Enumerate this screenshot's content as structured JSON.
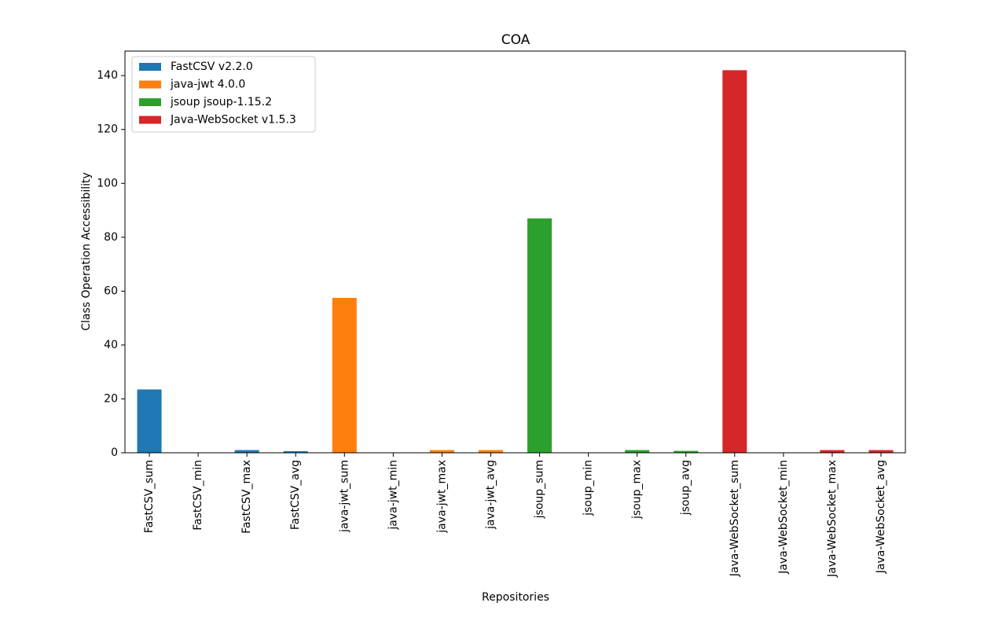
{
  "chart_data": {
    "type": "bar",
    "title": "COA",
    "xlabel": "Repositories",
    "ylabel": "Class Operation Accessibility",
    "categories": [
      "FastCSV_sum",
      "FastCSV_min",
      "FastCSV_max",
      "FastCSV_avg",
      "java-jwt_sum",
      "java-jwt_min",
      "java-jwt_max",
      "java-jwt_avg",
      "jsoup_sum",
      "jsoup_min",
      "jsoup_max",
      "jsoup_avg",
      "Java-WebSocket_sum",
      "Java-WebSocket_min",
      "Java-WebSocket_max",
      "Java-WebSocket_avg"
    ],
    "series": [
      {
        "name": "FastCSV v2.2.0",
        "color": "#1f77b4",
        "values": [
          23.5,
          0,
          1,
          0.6,
          null,
          null,
          null,
          null,
          null,
          null,
          null,
          null,
          null,
          null,
          null,
          null
        ]
      },
      {
        "name": "java-jwt 4.0.0",
        "color": "#ff7f0e",
        "values": [
          null,
          null,
          null,
          null,
          57.5,
          0,
          1,
          1,
          null,
          null,
          null,
          null,
          null,
          null,
          null,
          null
        ]
      },
      {
        "name": "jsoup jsoup-1.15.2",
        "color": "#2ca02c",
        "values": [
          null,
          null,
          null,
          null,
          null,
          null,
          null,
          null,
          87,
          0,
          1,
          0.7,
          null,
          null,
          null,
          null
        ]
      },
      {
        "name": "Java-WebSocket v1.5.3",
        "color": "#d62728",
        "values": [
          null,
          null,
          null,
          null,
          null,
          null,
          null,
          null,
          null,
          null,
          null,
          null,
          142,
          0,
          1,
          1
        ]
      }
    ],
    "ylim": [
      0,
      149.1
    ],
    "yticks": [
      0,
      20,
      40,
      60,
      80,
      100,
      120,
      140
    ],
    "legend": "upper left"
  }
}
